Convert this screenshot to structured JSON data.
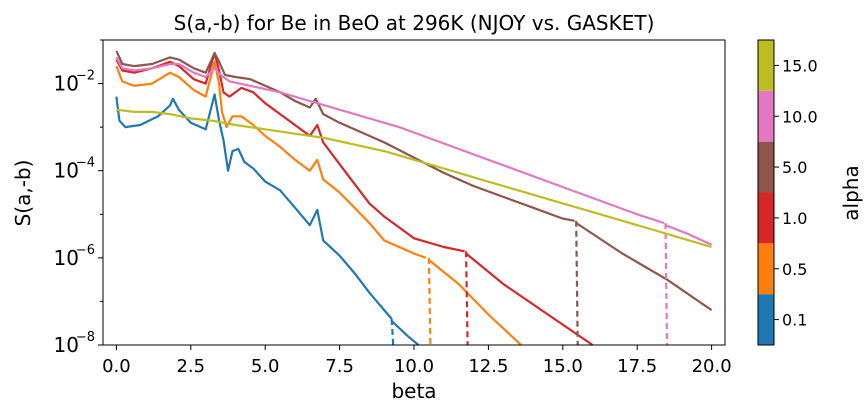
{
  "chart_data": {
    "type": "line",
    "title": "S(a,-b) for Be in BeO at 296K (NJOY vs. GASKET)",
    "xlabel": "beta",
    "ylabel": "S(a,-b)",
    "xlim": [
      -0.45,
      20.45
    ],
    "ylim_log10": [
      -8,
      -1.0
    ],
    "yscale": "log",
    "x_ticks": [
      0,
      2.5,
      5,
      7.5,
      10,
      12.5,
      15,
      17.5,
      20
    ],
    "x_tick_labels": [
      "0.0",
      "2.5",
      "5.0",
      "7.5",
      "10.0",
      "12.5",
      "15.0",
      "17.5",
      "20.0"
    ],
    "y_ticks_exp": [
      -8,
      -6,
      -4,
      -2
    ],
    "y_tick_base": "10",
    "grid": false,
    "colorbar": {
      "label": "alpha",
      "entries": [
        "0.1",
        "0.5",
        "1.0",
        "5.0",
        "10.0",
        "15.0"
      ],
      "colors": [
        "#1f77b4",
        "#ff7f0e",
        "#d62728",
        "#8c564b",
        "#e377c2",
        "#bcbd22"
      ]
    },
    "series": [
      {
        "color": "#1f77b4",
        "solid": [
          [
            0,
            -2.3
          ],
          [
            0.1,
            -2.85
          ],
          [
            0.3,
            -3.0
          ],
          [
            0.8,
            -2.95
          ],
          [
            1.4,
            -2.75
          ],
          [
            1.8,
            -2.5
          ],
          [
            1.9,
            -2.35
          ],
          [
            2.1,
            -2.6
          ],
          [
            2.5,
            -2.9
          ],
          [
            3.0,
            -3.05
          ],
          [
            3.3,
            -2.25
          ],
          [
            3.45,
            -2.85
          ],
          [
            3.6,
            -3.3
          ],
          [
            3.75,
            -4.0
          ],
          [
            3.9,
            -3.55
          ],
          [
            4.1,
            -3.5
          ],
          [
            4.3,
            -3.8
          ],
          [
            4.6,
            -3.95
          ],
          [
            5.0,
            -4.25
          ],
          [
            5.5,
            -4.45
          ],
          [
            6.0,
            -4.85
          ],
          [
            6.5,
            -5.25
          ],
          [
            6.75,
            -4.9
          ],
          [
            6.95,
            -5.6
          ],
          [
            7.5,
            -5.95
          ],
          [
            8.0,
            -6.35
          ],
          [
            8.5,
            -6.8
          ],
          [
            9.0,
            -7.2
          ],
          [
            9.25,
            -7.4
          ]
        ],
        "dashed": [
          [
            9.25,
            -7.4
          ],
          [
            9.3,
            -8.0
          ]
        ],
        "tail": [
          [
            9.25,
            -7.45
          ],
          [
            9.8,
            -7.8
          ],
          [
            10.15,
            -8.0
          ]
        ]
      },
      {
        "color": "#ff7f0e",
        "solid": [
          [
            0,
            -1.6
          ],
          [
            0.2,
            -1.95
          ],
          [
            0.6,
            -2.05
          ],
          [
            1.2,
            -2.0
          ],
          [
            1.8,
            -1.75
          ],
          [
            2.1,
            -1.85
          ],
          [
            2.6,
            -2.15
          ],
          [
            3.0,
            -2.3
          ],
          [
            3.3,
            -1.5
          ],
          [
            3.45,
            -2.0
          ],
          [
            3.55,
            -2.65
          ],
          [
            3.7,
            -3.0
          ],
          [
            3.9,
            -2.75
          ],
          [
            4.2,
            -2.75
          ],
          [
            4.6,
            -2.95
          ],
          [
            5.0,
            -3.2
          ],
          [
            5.5,
            -3.45
          ],
          [
            6.0,
            -3.75
          ],
          [
            6.5,
            -4.0
          ],
          [
            6.75,
            -3.75
          ],
          [
            6.95,
            -4.2
          ],
          [
            7.5,
            -4.5
          ],
          [
            8.0,
            -4.85
          ],
          [
            8.5,
            -5.2
          ],
          [
            9.0,
            -5.6
          ],
          [
            9.5,
            -5.75
          ],
          [
            10.0,
            -5.9
          ],
          [
            10.4,
            -6.0
          ]
        ],
        "dashed": [
          [
            10.5,
            -6.0
          ],
          [
            10.55,
            -8.0
          ]
        ],
        "tail": [
          [
            10.5,
            -6.05
          ],
          [
            11.5,
            -6.6
          ],
          [
            12.5,
            -7.3
          ],
          [
            13.6,
            -8.0
          ]
        ]
      },
      {
        "color": "#d62728",
        "solid": [
          [
            0,
            -1.45
          ],
          [
            0.2,
            -1.7
          ],
          [
            0.6,
            -1.75
          ],
          [
            1.2,
            -1.65
          ],
          [
            1.8,
            -1.5
          ],
          [
            2.1,
            -1.6
          ],
          [
            2.6,
            -1.9
          ],
          [
            3.0,
            -2.0
          ],
          [
            3.3,
            -1.3
          ],
          [
            3.45,
            -1.7
          ],
          [
            3.6,
            -2.2
          ],
          [
            3.8,
            -2.3
          ],
          [
            4.2,
            -2.1
          ],
          [
            4.6,
            -2.2
          ],
          [
            5.0,
            -2.45
          ],
          [
            5.5,
            -2.7
          ],
          [
            6.0,
            -2.95
          ],
          [
            6.5,
            -3.2
          ],
          [
            6.75,
            -2.95
          ],
          [
            6.95,
            -3.35
          ],
          [
            7.5,
            -3.85
          ],
          [
            8.0,
            -4.3
          ],
          [
            8.5,
            -4.75
          ],
          [
            9.0,
            -5.05
          ],
          [
            9.5,
            -5.3
          ],
          [
            10.0,
            -5.55
          ],
          [
            11.0,
            -5.75
          ],
          [
            11.7,
            -5.85
          ]
        ],
        "dashed": [
          [
            11.75,
            -5.85
          ],
          [
            11.8,
            -8.0
          ]
        ],
        "tail": [
          [
            11.75,
            -5.9
          ],
          [
            13.0,
            -6.6
          ],
          [
            14.5,
            -7.3
          ],
          [
            16.0,
            -8.0
          ]
        ]
      },
      {
        "color": "#8c564b",
        "solid": [
          [
            0,
            -1.25
          ],
          [
            0.2,
            -1.55
          ],
          [
            0.6,
            -1.6
          ],
          [
            1.2,
            -1.55
          ],
          [
            1.8,
            -1.4
          ],
          [
            2.1,
            -1.45
          ],
          [
            2.6,
            -1.65
          ],
          [
            3.0,
            -1.75
          ],
          [
            3.3,
            -1.3
          ],
          [
            3.45,
            -1.5
          ],
          [
            3.65,
            -1.8
          ],
          [
            4.0,
            -1.85
          ],
          [
            4.5,
            -1.9
          ],
          [
            5.0,
            -2.05
          ],
          [
            5.5,
            -2.2
          ],
          [
            6.0,
            -2.4
          ],
          [
            6.5,
            -2.55
          ],
          [
            6.7,
            -2.35
          ],
          [
            6.95,
            -2.7
          ],
          [
            7.5,
            -2.9
          ],
          [
            8.0,
            -3.05
          ],
          [
            9.0,
            -3.35
          ],
          [
            10.0,
            -3.7
          ],
          [
            11.0,
            -4.05
          ],
          [
            12.0,
            -4.35
          ],
          [
            13.0,
            -4.6
          ],
          [
            14.0,
            -4.85
          ],
          [
            15.0,
            -5.1
          ],
          [
            15.4,
            -5.15
          ]
        ],
        "dashed": [
          [
            15.45,
            -5.15
          ],
          [
            15.5,
            -8.0
          ]
        ],
        "tail": [
          [
            15.45,
            -5.2
          ],
          [
            17.0,
            -5.9
          ],
          [
            18.5,
            -6.5
          ],
          [
            20.0,
            -7.2
          ]
        ]
      },
      {
        "color": "#e377c2",
        "solid": [
          [
            0,
            -1.4
          ],
          [
            0.2,
            -1.65
          ],
          [
            0.6,
            -1.7
          ],
          [
            1.2,
            -1.65
          ],
          [
            1.8,
            -1.55
          ],
          [
            2.1,
            -1.55
          ],
          [
            2.6,
            -1.75
          ],
          [
            3.0,
            -1.85
          ],
          [
            3.3,
            -1.65
          ],
          [
            3.5,
            -1.8
          ],
          [
            3.8,
            -1.95
          ],
          [
            4.5,
            -2.05
          ],
          [
            5.5,
            -2.2
          ],
          [
            6.5,
            -2.4
          ],
          [
            7.5,
            -2.6
          ],
          [
            8.5,
            -2.8
          ],
          [
            9.5,
            -3.0
          ],
          [
            10.5,
            -3.25
          ],
          [
            11.5,
            -3.5
          ],
          [
            12.5,
            -3.75
          ],
          [
            13.5,
            -4.0
          ],
          [
            14.5,
            -4.25
          ],
          [
            15.5,
            -4.5
          ],
          [
            16.5,
            -4.75
          ],
          [
            17.5,
            -5.0
          ],
          [
            18.4,
            -5.2
          ]
        ],
        "dashed": [
          [
            18.45,
            -5.2
          ],
          [
            18.5,
            -8.0
          ]
        ],
        "tail": [
          [
            18.45,
            -5.25
          ],
          [
            19.2,
            -5.45
          ],
          [
            20.0,
            -5.7
          ]
        ]
      },
      {
        "color": "#bcbd22",
        "solid": [
          [
            0,
            -2.6
          ],
          [
            0.6,
            -2.65
          ],
          [
            1.2,
            -2.65
          ],
          [
            1.8,
            -2.7
          ],
          [
            2.5,
            -2.8
          ],
          [
            3.2,
            -2.85
          ],
          [
            4.0,
            -2.95
          ],
          [
            5.0,
            -3.05
          ],
          [
            6.0,
            -3.15
          ],
          [
            7.0,
            -3.25
          ],
          [
            8.0,
            -3.4
          ],
          [
            9.0,
            -3.55
          ],
          [
            10.0,
            -3.75
          ],
          [
            11.0,
            -3.95
          ],
          [
            12.0,
            -4.15
          ],
          [
            13.0,
            -4.35
          ],
          [
            14.0,
            -4.55
          ],
          [
            15.0,
            -4.75
          ],
          [
            16.0,
            -4.95
          ],
          [
            17.0,
            -5.15
          ],
          [
            18.0,
            -5.35
          ],
          [
            19.0,
            -5.55
          ],
          [
            20.0,
            -5.75
          ]
        ],
        "dashed": [],
        "tail": []
      }
    ]
  }
}
